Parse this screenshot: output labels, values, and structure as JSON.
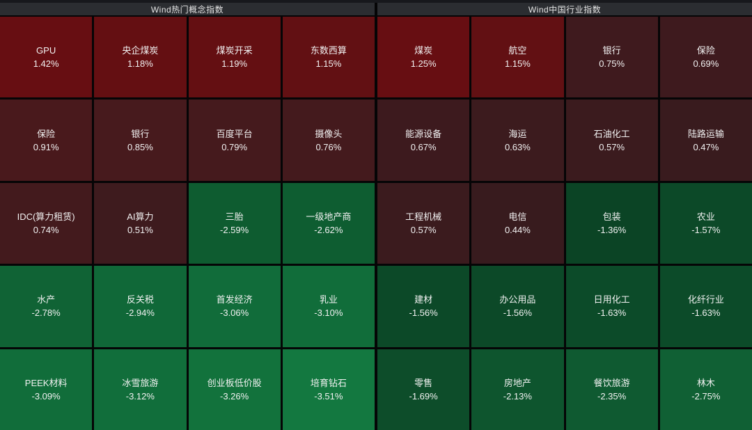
{
  "header": {
    "left_title": "Wind热门概念指数",
    "right_title": "Wind中国行业指数"
  },
  "colors": {
    "background": "#050506",
    "header_bg": "#2b2d31",
    "header_text": "#e6e6e6",
    "cell_text": "#f2f2f2",
    "strong_up_red": "#670e12",
    "weak_up_red": "#431a1d",
    "weak_down_green": "#0b4425",
    "strong_down_green": "#137840"
  },
  "chart_data": {
    "type": "heatmap",
    "title": "Wind指数涨跌幅热力图",
    "legend_position": "none",
    "grid": "4 columns x 5 rows per section, two sections side by side",
    "sections": [
      {
        "title": "Wind热门概念指数",
        "columns": 4,
        "rows": 5,
        "cells": [
          {
            "name": "GPU",
            "value": "1.42%",
            "change": 1.42,
            "color": "#670e12"
          },
          {
            "name": "央企煤炭",
            "value": "1.18%",
            "change": 1.18,
            "color": "#640f12"
          },
          {
            "name": "煤炭开采",
            "value": "1.19%",
            "change": 1.19,
            "color": "#640f12"
          },
          {
            "name": "东数西算",
            "value": "1.15%",
            "change": 1.15,
            "color": "#621013"
          },
          {
            "name": "保险",
            "value": "0.91%",
            "change": 0.91,
            "color": "#49191c"
          },
          {
            "name": "银行",
            "value": "0.85%",
            "change": 0.85,
            "color": "#471a1d"
          },
          {
            "name": "百度平台",
            "value": "0.79%",
            "change": 0.79,
            "color": "#451a1d"
          },
          {
            "name": "摄像头",
            "value": "0.76%",
            "change": 0.76,
            "color": "#441a1d"
          },
          {
            "name": "IDC(算力租赁)",
            "value": "0.74%",
            "change": 0.74,
            "color": "#431a1d"
          },
          {
            "name": "AI算力",
            "value": "0.51%",
            "change": 0.51,
            "color": "#3e1b1e"
          },
          {
            "name": "三胎",
            "value": "-2.59%",
            "change": -2.59,
            "color": "#0e5c30"
          },
          {
            "name": "一级地产商",
            "value": "-2.62%",
            "change": -2.62,
            "color": "#0e5d31"
          },
          {
            "name": "水产",
            "value": "-2.78%",
            "change": -2.78,
            "color": "#106335"
          },
          {
            "name": "反关税",
            "value": "-2.94%",
            "change": -2.94,
            "color": "#106838"
          },
          {
            "name": "首发经济",
            "value": "-3.06%",
            "change": -3.06,
            "color": "#116c3a"
          },
          {
            "name": "乳业",
            "value": "-3.10%",
            "change": -3.1,
            "color": "#116d3a"
          },
          {
            "name": "PEEK材料",
            "value": "-3.09%",
            "change": -3.09,
            "color": "#116d3a"
          },
          {
            "name": "冰雪旅游",
            "value": "-3.12%",
            "change": -3.12,
            "color": "#116e3b"
          },
          {
            "name": "创业板低价股",
            "value": "-3.26%",
            "change": -3.26,
            "color": "#12723c"
          },
          {
            "name": "培育钻石",
            "value": "-3.51%",
            "change": -3.51,
            "color": "#137840"
          }
        ]
      },
      {
        "title": "Wind中国行业指数",
        "columns": 4,
        "rows": 5,
        "cells": [
          {
            "name": "煤炭",
            "value": "1.25%",
            "change": 1.25,
            "color": "#670e12"
          },
          {
            "name": "航空",
            "value": "1.15%",
            "change": 1.15,
            "color": "#621013"
          },
          {
            "name": "银行",
            "value": "0.75%",
            "change": 0.75,
            "color": "#3f1a1e"
          },
          {
            "name": "保险",
            "value": "0.69%",
            "change": 0.69,
            "color": "#3e1a1e"
          },
          {
            "name": "能源设备",
            "value": "0.67%",
            "change": 0.67,
            "color": "#3d1a1e"
          },
          {
            "name": "海运",
            "value": "0.63%",
            "change": 0.63,
            "color": "#3c1b1e"
          },
          {
            "name": "石油化工",
            "value": "0.57%",
            "change": 0.57,
            "color": "#3b1b1e"
          },
          {
            "name": "陆路运输",
            "value": "0.47%",
            "change": 0.47,
            "color": "#391b1e"
          },
          {
            "name": "工程机械",
            "value": "0.57%",
            "change": 0.57,
            "color": "#3b1b1e"
          },
          {
            "name": "电信",
            "value": "0.44%",
            "change": 0.44,
            "color": "#381b1e"
          },
          {
            "name": "包装",
            "value": "-1.36%",
            "change": -1.36,
            "color": "#0b4425"
          },
          {
            "name": "农业",
            "value": "-1.57%",
            "change": -1.57,
            "color": "#0c4928"
          },
          {
            "name": "建材",
            "value": "-1.56%",
            "change": -1.56,
            "color": "#0c4928"
          },
          {
            "name": "办公用品",
            "value": "-1.56%",
            "change": -1.56,
            "color": "#0c4928"
          },
          {
            "name": "日用化工",
            "value": "-1.63%",
            "change": -1.63,
            "color": "#0c4b29"
          },
          {
            "name": "化纤行业",
            "value": "-1.63%",
            "change": -1.63,
            "color": "#0c4b29"
          },
          {
            "name": "零售",
            "value": "-1.69%",
            "change": -1.69,
            "color": "#0d4d2a"
          },
          {
            "name": "房地产",
            "value": "-2.13%",
            "change": -2.13,
            "color": "#0e552e"
          },
          {
            "name": "餐饮旅游",
            "value": "-2.35%",
            "change": -2.35,
            "color": "#0f5a31"
          },
          {
            "name": "林木",
            "value": "-2.75%",
            "change": -2.75,
            "color": "#106034"
          }
        ]
      }
    ]
  }
}
